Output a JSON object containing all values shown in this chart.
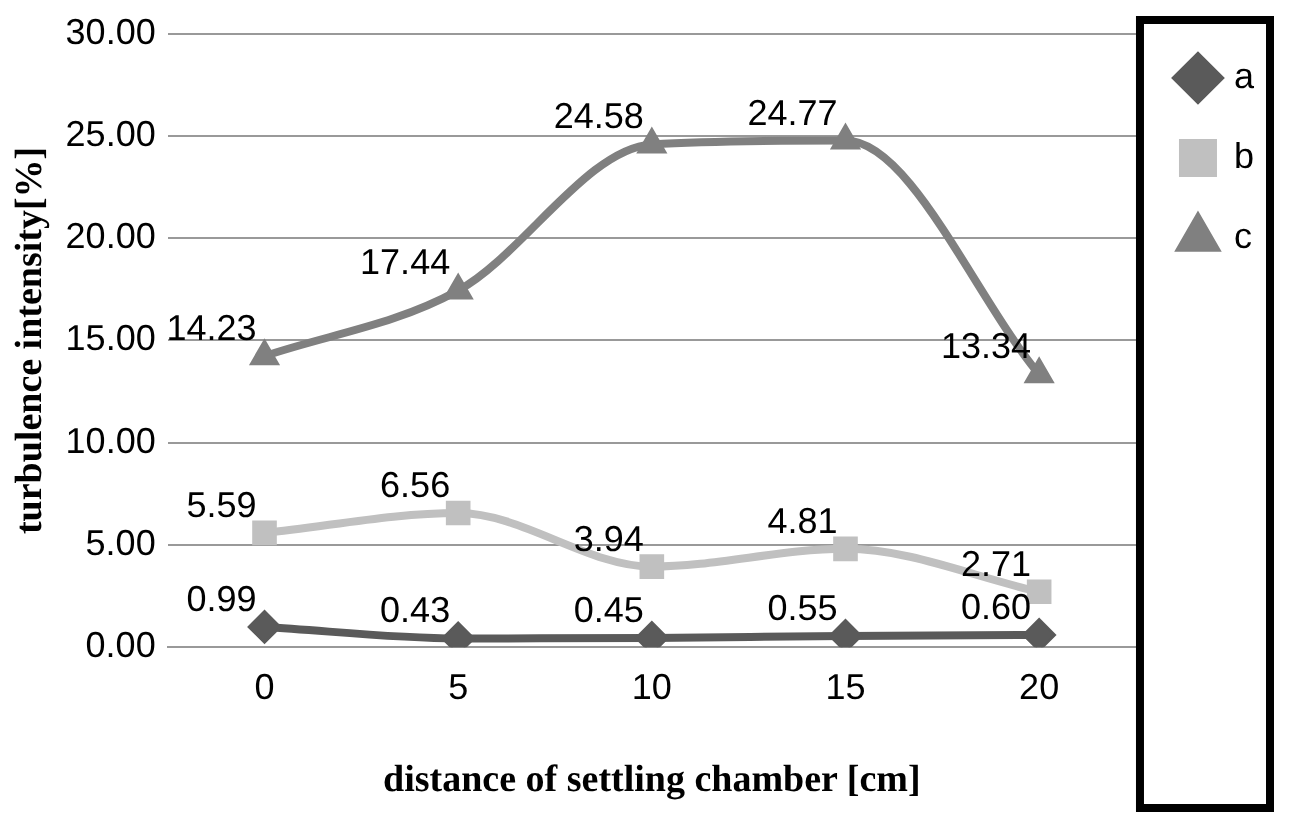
{
  "chart_data": {
    "type": "line",
    "xlabel": "distance of settling chamber [cm]",
    "ylabel": "turbulence intensity[%]",
    "categories": [
      "0",
      "5",
      "10",
      "15",
      "20"
    ],
    "series": [
      {
        "name": "a",
        "color": "#5a5a5a",
        "marker": "diamond",
        "values": [
          0.99,
          0.43,
          0.45,
          0.55,
          0.6
        ],
        "value_labels": [
          "0.99",
          "0.43",
          "0.45",
          "0.55",
          "0.60"
        ]
      },
      {
        "name": "b",
        "color": "#c0c0c0",
        "marker": "square",
        "values": [
          5.59,
          6.56,
          3.94,
          4.81,
          2.71
        ],
        "value_labels": [
          "5.59",
          "6.56",
          "3.94",
          "4.81",
          "2.71"
        ]
      },
      {
        "name": "c",
        "color": "#808080",
        "marker": "triangle",
        "values": [
          14.23,
          17.44,
          24.58,
          24.77,
          13.34
        ],
        "value_labels": [
          "14.23",
          "17.44",
          "24.58",
          "24.77",
          "13.34"
        ]
      }
    ],
    "ylim": [
      0,
      30
    ],
    "yticks": [
      {
        "value": 0,
        "label": "0.00"
      },
      {
        "value": 5,
        "label": "5.00"
      },
      {
        "value": 10,
        "label": "10.00"
      },
      {
        "value": 15,
        "label": "15.00"
      },
      {
        "value": 20,
        "label": "20.00"
      },
      {
        "value": 25,
        "label": "25.00"
      },
      {
        "value": 30,
        "label": "30.00"
      }
    ],
    "grid": "y",
    "legend": "top right"
  }
}
